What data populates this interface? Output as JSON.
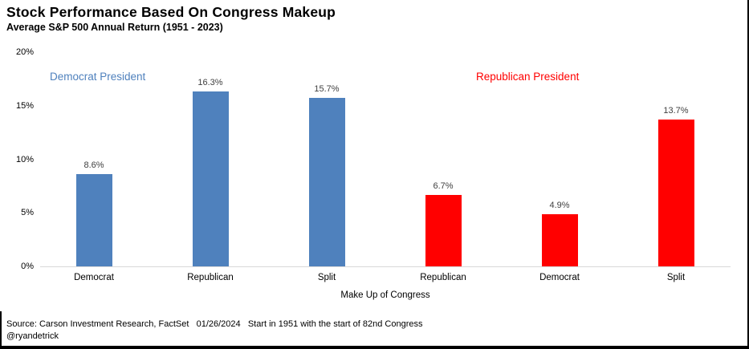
{
  "header": {
    "title": "Stock Performance Based On Congress Makeup",
    "subtitle": "Average S&P 500 Annual Return (1951 - 2023)"
  },
  "chart_data": {
    "type": "bar",
    "title": "Stock Performance Based On Congress Makeup",
    "subtitle": "Average S&P 500 Annual Return (1951 - 2023)",
    "xlabel": "Make Up of Congress",
    "ylabel": "",
    "ylim": [
      0,
      20
    ],
    "grid": false,
    "y_ticks": [
      {
        "value": 20,
        "label": "20%"
      },
      {
        "value": 15,
        "label": "15%"
      },
      {
        "value": 10,
        "label": "10%"
      },
      {
        "value": 5,
        "label": "5%"
      },
      {
        "value": 0,
        "label": "0%"
      }
    ],
    "groups": [
      {
        "name": "Democrat President",
        "color": "#4f81bd"
      },
      {
        "name": "Republican President",
        "color": "#ff0000"
      }
    ],
    "bars": [
      {
        "category": "Democrat",
        "value": 8.6,
        "label": "8.6%",
        "group": 0
      },
      {
        "category": "Republican",
        "value": 16.3,
        "label": "16.3%",
        "group": 0
      },
      {
        "category": "Split",
        "value": 15.7,
        "label": "15.7%",
        "group": 0
      },
      {
        "category": "Republican",
        "value": 6.7,
        "label": "6.7%",
        "group": 1
      },
      {
        "category": "Democrat",
        "value": 4.9,
        "label": "4.9%",
        "group": 1
      },
      {
        "category": "Split",
        "value": 13.7,
        "label": "13.7%",
        "group": 1
      }
    ],
    "legend_position": "inside-top"
  },
  "footer": {
    "source_line": "Source: Carson Investment Research, FactSet   01/26/2024   Start in 1951 with the start of 82nd Congress",
    "handle": "@ryandetrick"
  },
  "colors": {
    "democrat_president": "#4f81bd",
    "republican_president": "#ff0000",
    "axis_line": "#d9d9d9",
    "value_label": "#404040"
  }
}
